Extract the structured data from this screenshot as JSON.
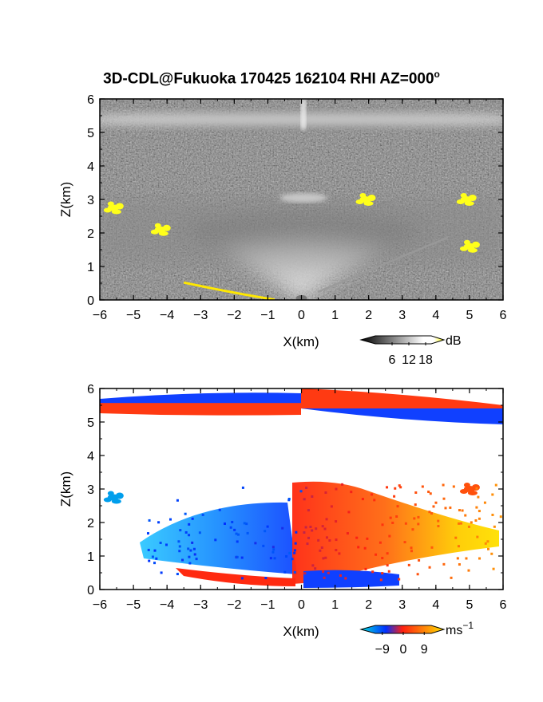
{
  "title": "3D-CDL@Fukuoka 170425 162104 RHI AZ=000",
  "title_superscript": "o",
  "chart_data": [
    {
      "type": "heatmap",
      "name": "backscatter-intensity",
      "xlabel": "X(km)",
      "ylabel": "Z(km)",
      "xlim": [
        -6,
        6
      ],
      "ylim": [
        0,
        6
      ],
      "xticks": [
        "-6",
        "-5",
        "-4",
        "-3",
        "-2",
        "-1",
        "0",
        "1",
        "2",
        "3",
        "4",
        "5",
        "6"
      ],
      "yticks": [
        "0",
        "1",
        "2",
        "3",
        "4",
        "5",
        "6"
      ],
      "colorbar": {
        "unit": "dB",
        "ticks": [
          "6",
          "12",
          "18"
        ],
        "range": [
          0,
          20
        ],
        "colors": [
          "#000000",
          "#ffffff",
          "#ffff00"
        ]
      },
      "features": [
        {
          "kind": "layer",
          "x": [
            -6,
            6
          ],
          "z": [
            5.0,
            5.6
          ],
          "value": 13
        },
        {
          "kind": "cone",
          "apex": [
            0,
            0
          ],
          "z_top": 2.4,
          "value": 12
        },
        {
          "kind": "patch",
          "x": [
            -6,
            6
          ],
          "z": [
            1.2,
            2.6
          ],
          "value": 9
        },
        {
          "kind": "cloud",
          "x": -5.6,
          "z": 2.75,
          "value": 19
        },
        {
          "kind": "cloud",
          "x": -4.2,
          "z": 2.1,
          "value": 19
        },
        {
          "kind": "cloud",
          "x": 1.9,
          "z": 3.0,
          "value": 19
        },
        {
          "kind": "cloud",
          "x": 4.9,
          "z": 3.0,
          "value": 19
        },
        {
          "kind": "cloud",
          "x": 5.0,
          "z": 1.6,
          "value": 19
        }
      ],
      "background_value": 3
    },
    {
      "type": "heatmap",
      "name": "doppler-velocity",
      "xlabel": "X(km)",
      "ylabel": "Z(km)",
      "xlim": [
        -6,
        6
      ],
      "ylim": [
        0,
        6
      ],
      "xticks": [
        "-6",
        "-5",
        "-4",
        "-3",
        "-2",
        "-1",
        "0",
        "1",
        "2",
        "3",
        "4",
        "5",
        "6"
      ],
      "yticks": [
        "0",
        "1",
        "2",
        "3",
        "4",
        "5",
        "6"
      ],
      "colorbar": {
        "unit": "ms",
        "unit_superscript": "−1",
        "ticks": [
          "−9",
          "0",
          "9"
        ],
        "range": [
          -12,
          12
        ],
        "colors": [
          "#00e0e0",
          "#0030ff",
          "#ff2010",
          "#ffe000"
        ]
      },
      "features": [
        {
          "kind": "band",
          "x": [
            -6,
            6
          ],
          "z": [
            5.0,
            5.9
          ],
          "left_value": -8,
          "right_value": 8,
          "split": "sheared"
        },
        {
          "kind": "flow",
          "side": "left",
          "x": [
            -4.5,
            -0.2
          ],
          "z": [
            0.9,
            2.1
          ],
          "value": -6
        },
        {
          "kind": "flow",
          "side": "right",
          "x": [
            0,
            6
          ],
          "z": [
            0.4,
            3.1
          ],
          "value": 5
        },
        {
          "kind": "cloud",
          "x": -5.6,
          "z": 2.75,
          "value": -9
        },
        {
          "kind": "cloud",
          "x": 5.0,
          "z": 3.0,
          "value": 6
        }
      ]
    }
  ]
}
